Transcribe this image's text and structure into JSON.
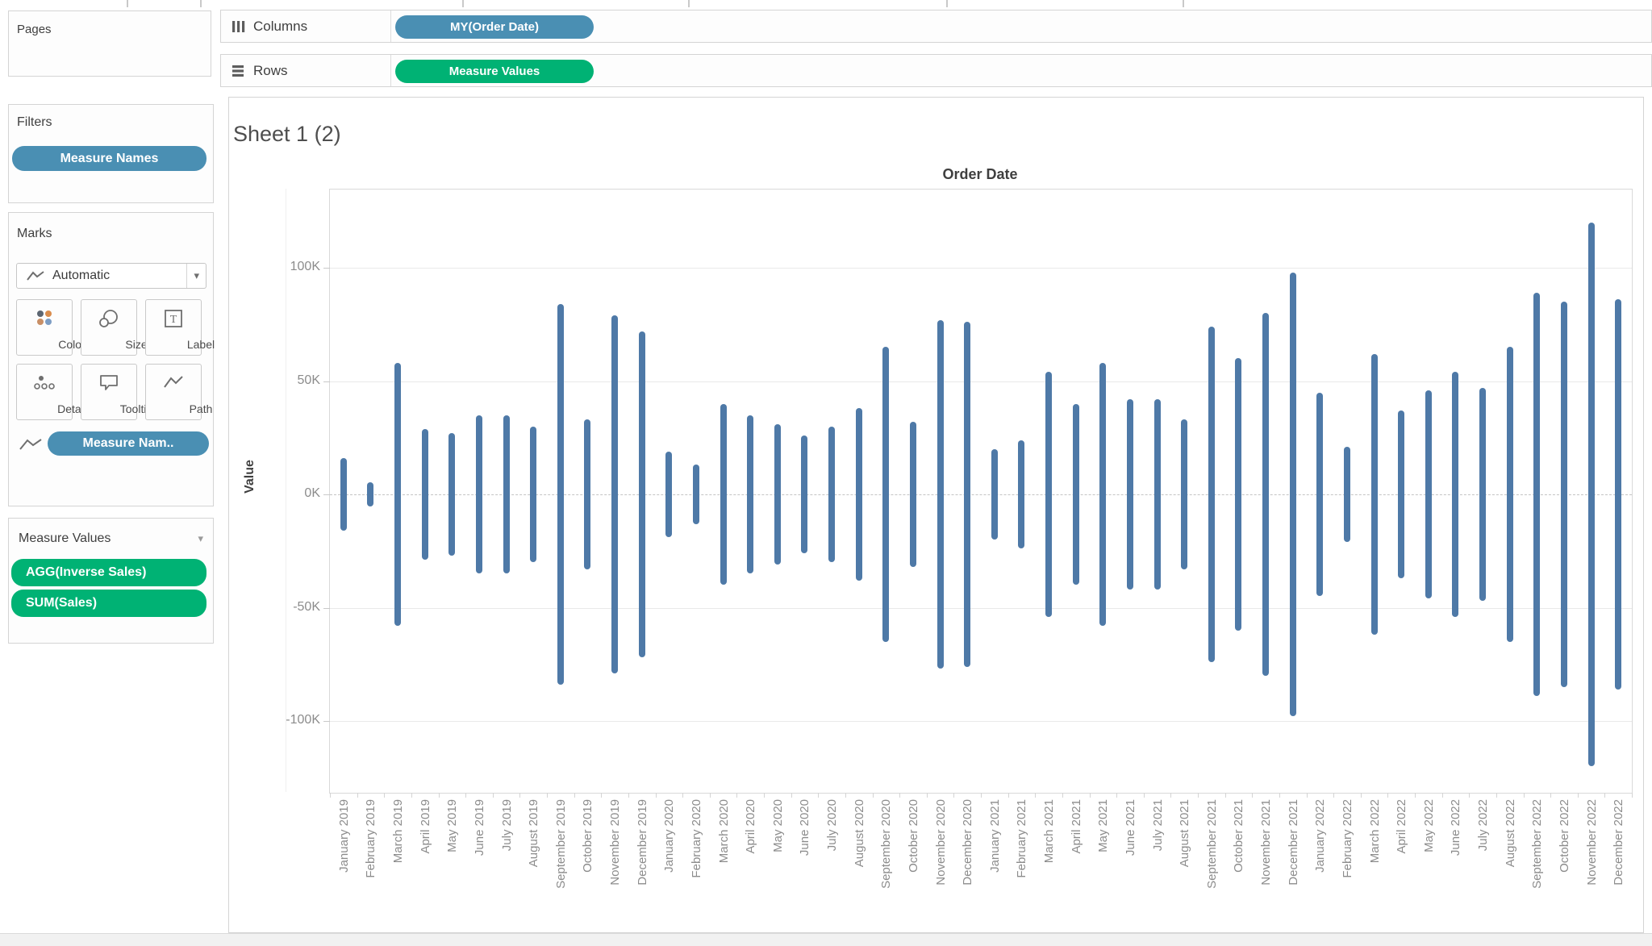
{
  "shelves": {
    "columns_label": "Columns",
    "columns_pill": "MY(Order Date)",
    "rows_label": "Rows",
    "rows_pill": "Measure Values"
  },
  "panels": {
    "pages": {
      "title": "Pages"
    },
    "filters": {
      "title": "Filters",
      "pill": "Measure Names"
    },
    "marks": {
      "title": "Marks",
      "mark_type": "Automatic",
      "buttons": [
        {
          "label": "Color"
        },
        {
          "label": "Size"
        },
        {
          "label": "Label"
        },
        {
          "label": "Detail"
        },
        {
          "label": "Tooltip"
        },
        {
          "label": "Path"
        }
      ],
      "pill": "Measure Nam.."
    },
    "measure_values": {
      "title": "Measure Values",
      "pills": [
        "AGG(Inverse Sales)",
        "SUM(Sales)"
      ]
    }
  },
  "sheet": {
    "title": "Sheet 1 (2)"
  },
  "colors": {
    "dimension_pill": "#4a8fb3",
    "measure_pill": "#00b274",
    "bar": "#4e79a7",
    "axis_text": "#8c8c8c"
  },
  "chart_data": {
    "type": "bar",
    "variant": "vertical-range-bars",
    "title": "Order Date",
    "ylabel": "Value",
    "units": "thousands (K)",
    "categories": [
      "January 2019",
      "February 2019",
      "March 2019",
      "April 2019",
      "May 2019",
      "June 2019",
      "July 2019",
      "August 2019",
      "September 2019",
      "October 2019",
      "November 2019",
      "December 2019",
      "January 2020",
      "February 2020",
      "March 2020",
      "April 2020",
      "May 2020",
      "June 2020",
      "July 2020",
      "August 2020",
      "September 2020",
      "October 2020",
      "November 2020",
      "December 2020",
      "January 2021",
      "February 2021",
      "March 2021",
      "April 2021",
      "May 2021",
      "June 2021",
      "July 2021",
      "August 2021",
      "September 2021",
      "October 2021",
      "November 2021",
      "December 2021",
      "January 2022",
      "February 2022",
      "March 2022",
      "April 2022",
      "May 2022",
      "June 2022",
      "July 2022",
      "August 2022",
      "September 2022",
      "October 2022",
      "November 2022",
      "December 2022"
    ],
    "series": [
      {
        "name": "SUM(Sales)",
        "values": [
          16,
          5.5,
          58,
          29,
          27,
          35,
          35,
          30,
          84,
          33,
          79,
          72,
          19,
          13,
          40,
          35,
          31,
          26,
          30,
          38,
          65,
          32,
          77,
          76,
          20,
          24,
          54,
          40,
          58,
          42,
          42,
          33,
          74,
          60,
          80,
          98,
          45,
          21,
          62,
          37,
          46,
          54,
          47,
          65,
          89,
          85,
          120,
          86
        ]
      },
      {
        "name": "AGG(Inverse Sales)",
        "values": [
          -16,
          -5.5,
          -58,
          -29,
          -27,
          -35,
          -35,
          -30,
          -84,
          -33,
          -79,
          -72,
          -19,
          -13,
          -40,
          -35,
          -31,
          -26,
          -30,
          -38,
          -65,
          -32,
          -77,
          -76,
          -20,
          -24,
          -54,
          -40,
          -58,
          -42,
          -42,
          -33,
          -74,
          -60,
          -80,
          -98,
          -45,
          -21,
          -62,
          -37,
          -46,
          -54,
          -47,
          -65,
          -89,
          -85,
          -120,
          -86
        ]
      }
    ],
    "yticks": [
      {
        "value": 100,
        "label": "100K"
      },
      {
        "value": 50,
        "label": "50K"
      },
      {
        "value": 0,
        "label": "0K"
      },
      {
        "value": -50,
        "label": "-50K"
      },
      {
        "value": -100,
        "label": "-100K"
      }
    ],
    "ylim": [
      -132,
      134
    ],
    "grid": true,
    "zero_line": "dashed",
    "legend": "none"
  }
}
